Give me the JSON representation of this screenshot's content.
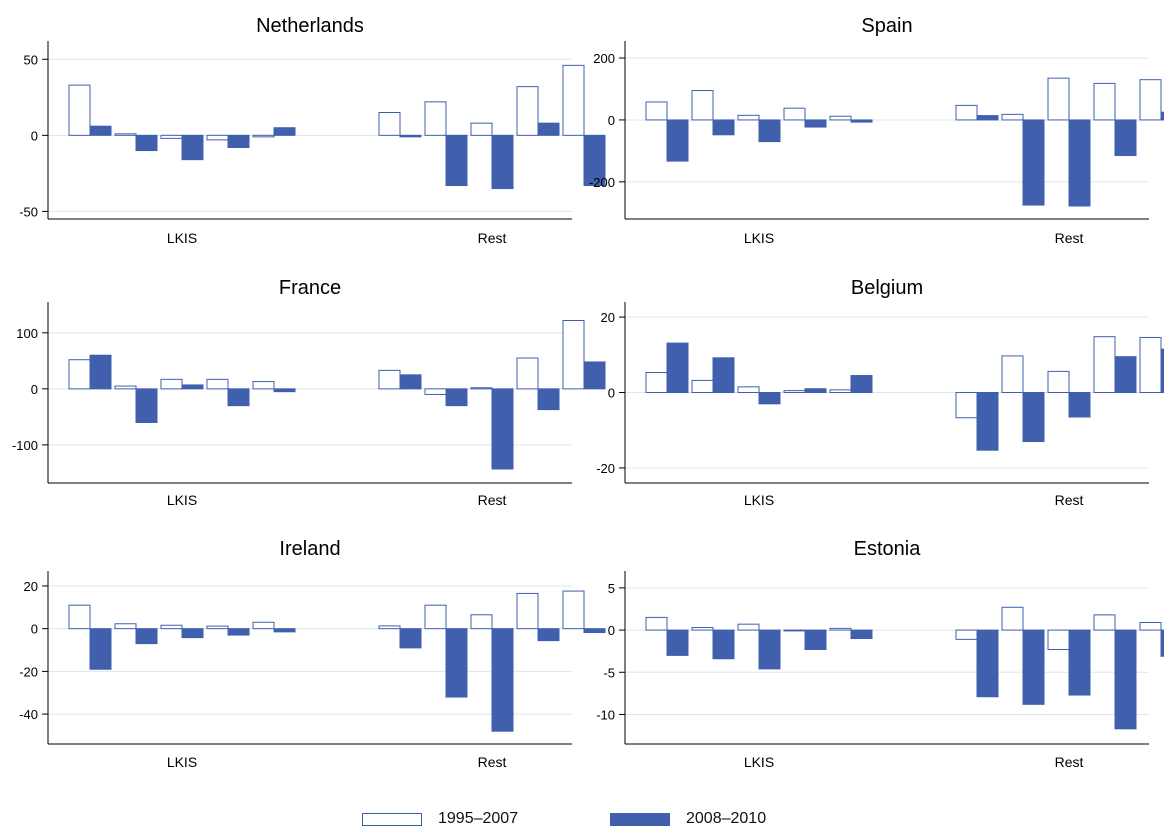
{
  "legend": {
    "series_1": "1995–2007",
    "series_2": "2008–2010"
  },
  "colors": {
    "series_1_fill": "#ffffff",
    "series_2_fill": "#4060ae",
    "bar_stroke": "#3f5fad",
    "gridline": "#dde6ec",
    "axis": "#000000"
  },
  "chart_data": [
    {
      "type": "bar",
      "title": "Netherlands",
      "groups": [
        "LKIS",
        "Rest"
      ],
      "bars_per_group": 5,
      "ylim": [
        -55,
        62
      ],
      "yticks": [
        50,
        0,
        -50
      ],
      "ytick_labels": [
        "50",
        "0",
        "-50"
      ],
      "series": [
        {
          "name": "1995–2007",
          "values": [
            33,
            1,
            -2,
            -3,
            -1,
            15,
            22,
            8,
            32,
            46
          ]
        },
        {
          "name": "2008–2010",
          "values": [
            6,
            -10,
            -16,
            -8,
            5,
            -1,
            -33,
            -35,
            8,
            -33
          ]
        }
      ]
    },
    {
      "type": "bar",
      "title": "Spain",
      "groups": [
        "LKIS",
        "Rest"
      ],
      "bars_per_group": 5,
      "ylim": [
        -320,
        255
      ],
      "yticks": [
        200,
        0,
        -200
      ],
      "ytick_labels": [
        "200",
        "0",
        "-200"
      ],
      "series": [
        {
          "name": "1995–2007",
          "values": [
            58,
            95,
            15,
            38,
            12,
            47,
            18,
            135,
            118,
            130
          ]
        },
        {
          "name": "2008–2010",
          "values": [
            -133,
            -48,
            -70,
            -23,
            -7,
            14,
            -275,
            -278,
            -115,
            25
          ]
        }
      ]
    },
    {
      "type": "bar",
      "title": "France",
      "groups": [
        "LKIS",
        "Rest"
      ],
      "bars_per_group": 5,
      "ylim": [
        -168,
        155
      ],
      "yticks": [
        100,
        0,
        -100
      ],
      "ytick_labels": [
        "100",
        "0",
        "-100"
      ],
      "series": [
        {
          "name": "1995–2007",
          "values": [
            52,
            5,
            17,
            17,
            13,
            33,
            -10,
            2,
            55,
            122
          ]
        },
        {
          "name": "2008–2010",
          "values": [
            60,
            -60,
            7,
            -30,
            -5,
            25,
            -30,
            -143,
            -37,
            48
          ]
        }
      ]
    },
    {
      "type": "bar",
      "title": "Belgium",
      "groups": [
        "LKIS",
        "Rest"
      ],
      "bars_per_group": 5,
      "ylim": [
        -24,
        24
      ],
      "yticks": [
        20,
        0,
        -20
      ],
      "ytick_labels": [
        "20",
        "0",
        "-20"
      ],
      "series": [
        {
          "name": "1995–2007",
          "values": [
            5.3,
            3.2,
            1.5,
            0.5,
            0.7,
            -6.7,
            9.7,
            5.6,
            14.8,
            14.6
          ]
        },
        {
          "name": "2008–2010",
          "values": [
            13.1,
            9.2,
            -3,
            1,
            4.5,
            -15.3,
            -13,
            -6.5,
            9.5,
            11.5
          ]
        }
      ]
    },
    {
      "type": "bar",
      "title": "Ireland",
      "groups": [
        "LKIS",
        "Rest"
      ],
      "bars_per_group": 5,
      "ylim": [
        -54,
        27
      ],
      "yticks": [
        20,
        0,
        -20,
        -40
      ],
      "ytick_labels": [
        "20",
        "0",
        "-20",
        "-40"
      ],
      "series": [
        {
          "name": "1995–2007",
          "values": [
            11,
            2.3,
            1.6,
            1.2,
            3,
            1.3,
            11,
            6.5,
            16.5,
            17.6
          ]
        },
        {
          "name": "2008–2010",
          "values": [
            -19,
            -7,
            -4.2,
            -3,
            -1.5,
            -9,
            -32,
            -48,
            -5.6,
            -1.8
          ]
        }
      ]
    },
    {
      "type": "bar",
      "title": "Estonia",
      "groups": [
        "LKIS",
        "Rest"
      ],
      "bars_per_group": 5,
      "ylim": [
        -13.5,
        7
      ],
      "yticks": [
        5,
        0,
        -5,
        -10
      ],
      "ytick_labels": [
        "5",
        "0",
        "-5",
        "-10"
      ],
      "series": [
        {
          "name": "1995–2007",
          "values": [
            1.5,
            0.3,
            0.7,
            -0.1,
            0.2,
            -1.1,
            2.7,
            -2.3,
            1.8,
            0.9
          ]
        },
        {
          "name": "2008–2010",
          "values": [
            -3,
            -3.4,
            -4.6,
            -2.3,
            -1,
            -7.9,
            -8.8,
            -7.7,
            -11.7,
            -3.1
          ]
        }
      ]
    }
  ]
}
